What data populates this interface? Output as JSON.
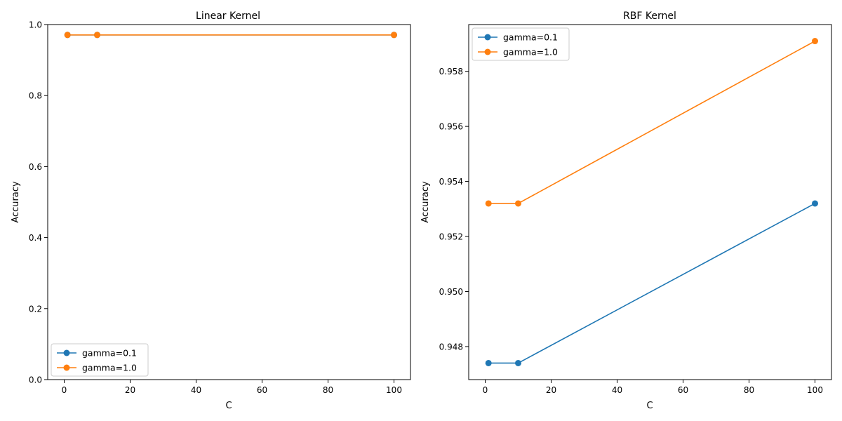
{
  "chart_data": [
    {
      "type": "line",
      "title": "Linear Kernel",
      "xlabel": "C",
      "ylabel": "Accuracy",
      "xlim": [
        -5,
        105
      ],
      "ylim": [
        0.0,
        1.0
      ],
      "xticks": [
        0,
        20,
        40,
        60,
        80,
        100
      ],
      "yticks": [
        0.0,
        0.2,
        0.4,
        0.6,
        0.8,
        1.0
      ],
      "ytick_decimals": 1,
      "grid": false,
      "legend_position": "lower-left",
      "series": [
        {
          "name": "gamma=0.1",
          "color": "#1f77b4",
          "marker": "circle",
          "x": [
            1,
            10,
            100
          ],
          "y": [
            0.9708,
            0.9708,
            0.9708
          ]
        },
        {
          "name": "gamma=1.0",
          "color": "#ff7f0e",
          "marker": "circle",
          "x": [
            1,
            10,
            100
          ],
          "y": [
            0.9708,
            0.9708,
            0.9708
          ]
        }
      ]
    },
    {
      "type": "line",
      "title": "RBF Kernel",
      "xlabel": "C",
      "ylabel": "Accuracy",
      "xlim": [
        -5,
        105
      ],
      "ylim": [
        0.9468,
        0.9597
      ],
      "xticks": [
        0,
        20,
        40,
        60,
        80,
        100
      ],
      "yticks": [
        0.948,
        0.95,
        0.952,
        0.954,
        0.956,
        0.958
      ],
      "ytick_decimals": 3,
      "grid": false,
      "legend_position": "upper-left",
      "series": [
        {
          "name": "gamma=0.1",
          "color": "#1f77b4",
          "marker": "circle",
          "x": [
            1,
            10,
            100
          ],
          "y": [
            0.9474,
            0.9474,
            0.9532
          ]
        },
        {
          "name": "gamma=1.0",
          "color": "#ff7f0e",
          "marker": "circle",
          "x": [
            1,
            10,
            100
          ],
          "y": [
            0.9532,
            0.9532,
            0.9591
          ]
        }
      ]
    }
  ]
}
